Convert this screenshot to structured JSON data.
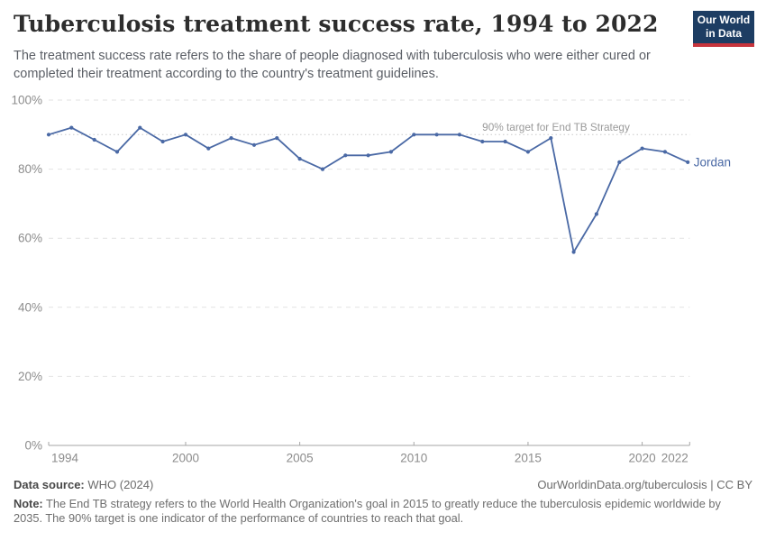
{
  "header": {
    "title": "Tuberculosis treatment success rate, 1994 to 2022",
    "subtitle": "The treatment success rate refers to the share of people diagnosed with tuberculosis who were either cured or completed their treatment according to the country's treatment guidelines.",
    "logo": {
      "line1": "Our World",
      "line2": "in Data"
    }
  },
  "chart_data": {
    "type": "line",
    "title": "Tuberculosis treatment success rate, 1994 to 2022",
    "xlabel": "",
    "ylabel": "",
    "xlim": [
      1994,
      2022
    ],
    "ylim": [
      0,
      100
    ],
    "grid": "horizontal-dashed",
    "legend_position": "end-of-line-label",
    "series": [
      {
        "name": "Jordan",
        "x": [
          1994,
          1995,
          1996,
          1997,
          1998,
          1999,
          2000,
          2001,
          2002,
          2003,
          2004,
          2005,
          2006,
          2007,
          2008,
          2009,
          2010,
          2011,
          2012,
          2013,
          2014,
          2015,
          2016,
          2017,
          2018,
          2019,
          2020,
          2021,
          2022
        ],
        "values": [
          90,
          92,
          88.5,
          85,
          92,
          88,
          90,
          86,
          89,
          87,
          89,
          83,
          80,
          84,
          84,
          85,
          90,
          90,
          90,
          88,
          88,
          85,
          89,
          56,
          67,
          82,
          86,
          85,
          82
        ]
      }
    ],
    "yticks": [
      {
        "value": 0,
        "label": "0%"
      },
      {
        "value": 20,
        "label": "20%"
      },
      {
        "value": 40,
        "label": "40%"
      },
      {
        "value": 60,
        "label": "60%"
      },
      {
        "value": 80,
        "label": "80%"
      },
      {
        "value": 100,
        "label": "100%"
      }
    ],
    "xticks": [
      {
        "value": 1994,
        "label": "1994"
      },
      {
        "value": 2000,
        "label": "2000"
      },
      {
        "value": 2005,
        "label": "2005"
      },
      {
        "value": 2010,
        "label": "2010"
      },
      {
        "value": 2015,
        "label": "2015"
      },
      {
        "value": 2020,
        "label": "2020"
      },
      {
        "value": 2022,
        "label": "2022"
      }
    ],
    "target_line": {
      "value": 90,
      "label": "90% target for End TB Strategy"
    },
    "end_label": "Jordan"
  },
  "colors": {
    "line": "#4a69a5",
    "logo_bg": "#1d3d63",
    "logo_accent": "#c7343c",
    "gridline": "#e2e2e2",
    "axis": "#a6a6a6",
    "tick_label": "#8c8c8c",
    "target_line": "#c9c9c9",
    "target_text": "#9a9a9a"
  },
  "footer": {
    "source_label": "Data source:",
    "source_value": " WHO (2024)",
    "link_text": "OurWorldinData.org/tuberculosis | CC BY",
    "note_label": "Note:",
    "note_text": " The End TB strategy refers to the World Health Organization's goal in 2015 to greatly reduce the tuberculosis epidemic worldwide by 2035. The 90% target is one indicator of the performance of countries to reach that goal."
  }
}
